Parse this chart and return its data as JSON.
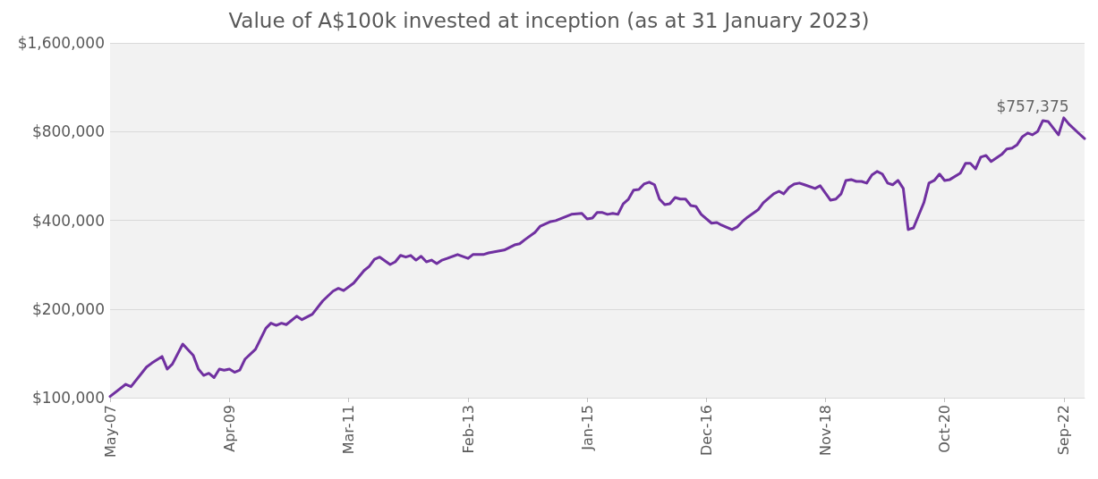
{
  "chart_data": {
    "type": "line",
    "title": "Value of A$100k invested at inception (as at 31 January 2023)",
    "series": [
      {
        "color": "#7030a0",
        "x": [
          "2007-05",
          "2007-08",
          "2007-09",
          "2007-12",
          "2008-01",
          "2008-03",
          "2008-04",
          "2008-05",
          "2008-07",
          "2008-09",
          "2008-10",
          "2008-11",
          "2008-12",
          "2009-01",
          "2009-02",
          "2009-03",
          "2009-04",
          "2009-05",
          "2009-06",
          "2009-07",
          "2009-09",
          "2009-11",
          "2009-12",
          "2010-01",
          "2010-02",
          "2010-03",
          "2010-05",
          "2010-06",
          "2010-08",
          "2010-10",
          "2010-12",
          "2011-01",
          "2011-02",
          "2011-04",
          "2011-06",
          "2011-07",
          "2011-08",
          "2011-09",
          "2011-11",
          "2011-12",
          "2012-01",
          "2012-02",
          "2012-03",
          "2012-04",
          "2012-05",
          "2012-06",
          "2012-07",
          "2012-08",
          "2012-09",
          "2012-10",
          "2012-12",
          "2013-02",
          "2013-03",
          "2013-05",
          "2013-06",
          "2013-09",
          "2013-11",
          "2013-12",
          "2014-01",
          "2014-03",
          "2014-04",
          "2014-06",
          "2014-07",
          "2014-10",
          "2014-12",
          "2015-01",
          "2015-02",
          "2015-03",
          "2015-04",
          "2015-05",
          "2015-06",
          "2015-07",
          "2015-08",
          "2015-09",
          "2015-10",
          "2015-11",
          "2015-12",
          "2016-01",
          "2016-02",
          "2016-03",
          "2016-04",
          "2016-05",
          "2016-06",
          "2016-07",
          "2016-08",
          "2016-09",
          "2016-10",
          "2016-11",
          "2017-01",
          "2017-02",
          "2017-03",
          "2017-05",
          "2017-06",
          "2017-07",
          "2017-08",
          "2017-10",
          "2017-11",
          "2018-01",
          "2018-02",
          "2018-03",
          "2018-04",
          "2018-05",
          "2018-06",
          "2018-07",
          "2018-09",
          "2018-10",
          "2018-12",
          "2019-01",
          "2019-02",
          "2019-03",
          "2019-04",
          "2019-05",
          "2019-06",
          "2019-07",
          "2019-08",
          "2019-09",
          "2019-10",
          "2019-11",
          "2019-12",
          "2020-01",
          "2020-02",
          "2020-03",
          "2020-04",
          "2020-06",
          "2020-07",
          "2020-08",
          "2020-09",
          "2020-10",
          "2020-11",
          "2021-01",
          "2021-02",
          "2021-03",
          "2021-04",
          "2021-05",
          "2021-06",
          "2021-07",
          "2021-09",
          "2021-10",
          "2021-11",
          "2021-12",
          "2022-01",
          "2022-02",
          "2022-03",
          "2022-04",
          "2022-05",
          "2022-06",
          "2022-08",
          "2022-09",
          "2022-10",
          "2022-12",
          "2023-01"
        ],
        "values": [
          101000,
          111000,
          109000,
          127000,
          131000,
          138000,
          125000,
          130000,
          152000,
          139000,
          125000,
          119000,
          121000,
          117000,
          125000,
          124000,
          125000,
          122000,
          124000,
          135000,
          146000,
          172000,
          179000,
          176000,
          179000,
          177000,
          189000,
          184000,
          192000,
          213000,
          230000,
          235000,
          231000,
          245000,
          270000,
          279000,
          295000,
          300000,
          283000,
          289000,
          304000,
          300000,
          304000,
          293000,
          302000,
          289000,
          293000,
          285000,
          293000,
          297000,
          306000,
          297000,
          306000,
          306000,
          310000,
          317000,
          330000,
          333000,
          344000,
          364000,
          382000,
          396000,
          399000,
          419000,
          422000,
          404000,
          407000,
          425000,
          425000,
          419000,
          422000,
          419000,
          455000,
          472000,
          506000,
          509000,
          531000,
          539000,
          528000,
          472000,
          452000,
          455000,
          478000,
          472000,
          472000,
          449000,
          446000,
          419000,
          391000,
          393000,
          385000,
          372000,
          380000,
          396000,
          410000,
          434000,
          459000,
          492000,
          502000,
          492000,
          517000,
          531000,
          535000,
          528000,
          513000,
          524000,
          468000,
          472000,
          492000,
          546000,
          550000,
          542000,
          542000,
          535000,
          570000,
          586000,
          574000,
          535000,
          528000,
          546000,
          513000,
          372000,
          377000,
          459000,
          535000,
          546000,
          574000,
          546000,
          550000,
          578000,
          624000,
          624000,
          598000,
          655000,
          664000,
          633000,
          669000,
          698000,
          703000,
          722000,
          769000,
          791000,
          780000,
          802000,
          872000,
          866000,
          780000,
          891000,
          848000,
          786000,
          757375
        ]
      }
    ],
    "xlim": [
      "2007-05",
      "2023-01"
    ],
    "xticks": [
      {
        "value": "2007-05",
        "label": "May-07"
      },
      {
        "value": "2009-04",
        "label": "Apr-09"
      },
      {
        "value": "2011-03",
        "label": "Mar-11"
      },
      {
        "value": "2013-02",
        "label": "Feb-13"
      },
      {
        "value": "2015-01",
        "label": "Jan-15"
      },
      {
        "value": "2016-12",
        "label": "Dec-16"
      },
      {
        "value": "2018-11",
        "label": "Nov-18"
      },
      {
        "value": "2020-10",
        "label": "Oct-20"
      },
      {
        "value": "2022-09",
        "label": "Sep-22"
      }
    ],
    "log": "y",
    "ylim": [
      100000,
      1600000
    ],
    "yticks": [
      {
        "value": 100000,
        "label": "$100,000"
      },
      {
        "value": 200000,
        "label": "$200,000"
      },
      {
        "value": 400000,
        "label": "$400,000"
      },
      {
        "value": 800000,
        "label": "$800,000"
      },
      {
        "value": 1600000,
        "label": "$1,600,000"
      }
    ],
    "grid": "y",
    "marker": "none",
    "line_style": "solid",
    "annotations": [
      {
        "text": "$757,375",
        "x": "2023-01",
        "y": 757375
      }
    ]
  }
}
